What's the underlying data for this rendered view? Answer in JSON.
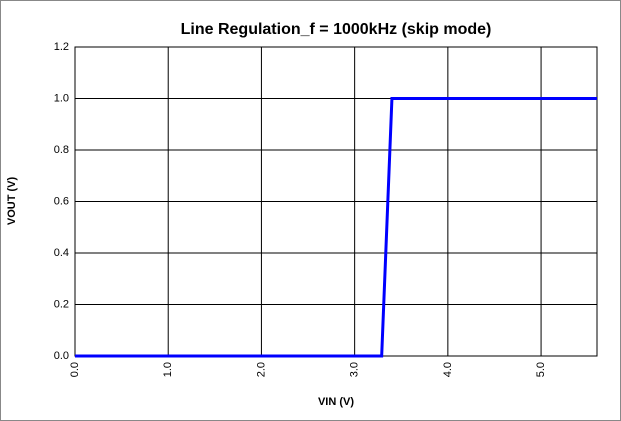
{
  "chart_data": {
    "type": "line",
    "title": "Line Regulation_f = 1000kHz (skip mode)",
    "x_label": "VIN (V)",
    "y_label": "VOUT (V)",
    "x": [
      0,
      3.29,
      3.4,
      5.6
    ],
    "series": [
      {
        "name": "VOUT",
        "color": "#0000ff",
        "values": [
          0,
          0,
          1.0,
          1.0
        ]
      }
    ],
    "xlim": [
      0,
      5.6
    ],
    "xticks": [
      {
        "value": 0,
        "label": "0.0"
      },
      {
        "value": 1,
        "label": "1.0"
      },
      {
        "value": 2,
        "label": "2.0"
      },
      {
        "value": 3,
        "label": "3.0"
      },
      {
        "value": 4,
        "label": "4.0"
      },
      {
        "value": 5,
        "label": "5.0"
      }
    ],
    "ylim": [
      0,
      1.2
    ],
    "yticks": [
      {
        "value": 0,
        "label": "0.0"
      },
      0.2,
      0.4,
      0.6,
      0.8,
      {
        "value": 1,
        "label": "1.0"
      },
      1.2
    ],
    "grid": true
  }
}
